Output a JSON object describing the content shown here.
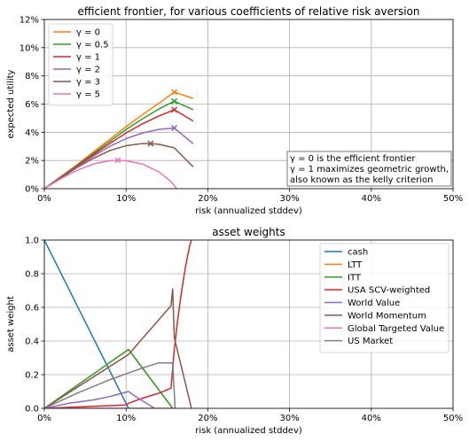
{
  "chart_data": [
    {
      "type": "line",
      "title": "efficient frontier, for various coefficients of relative risk aversion",
      "xlabel": "risk (annualized stddev)",
      "ylabel": "expected utility",
      "xlim": [
        0,
        50
      ],
      "ylim": [
        0,
        12
      ],
      "xticks": [
        "0%",
        "10%",
        "20%",
        "30%",
        "40%",
        "50%"
      ],
      "xtick_values": [
        0,
        10,
        20,
        30,
        40,
        50
      ],
      "yticks": [
        "0%",
        "2%",
        "4%",
        "6%",
        "8%",
        "10%",
        "12%"
      ],
      "ytick_values": [
        0,
        2,
        4,
        6,
        8,
        10,
        12
      ],
      "grid": true,
      "legend": "top-left",
      "series": [
        {
          "name": "γ = 0",
          "color": "#ff7f0e",
          "x": [
            0,
            2,
            4,
            6,
            8,
            10,
            12,
            14,
            15.9,
            18.2
          ],
          "y": [
            0,
            0.85,
            1.7,
            2.6,
            3.5,
            4.4,
            5.25,
            6.05,
            6.85,
            6.4
          ],
          "marker": [
            15.9,
            6.85
          ]
        },
        {
          "name": "γ = 0.5",
          "color": "#2ca02c",
          "x": [
            0,
            2,
            4,
            6,
            8,
            10,
            12,
            14,
            15.9,
            18.2
          ],
          "y": [
            0,
            0.82,
            1.65,
            2.5,
            3.35,
            4.2,
            4.95,
            5.65,
            6.2,
            5.6
          ],
          "marker": [
            15.9,
            6.2
          ]
        },
        {
          "name": "γ = 1",
          "color": "#d62728",
          "x": [
            0,
            2,
            4,
            6,
            8,
            10,
            12,
            14,
            15.9,
            18.2
          ],
          "y": [
            0,
            0.8,
            1.6,
            2.4,
            3.2,
            3.95,
            4.6,
            5.15,
            5.6,
            4.8
          ],
          "marker": [
            15.9,
            5.6
          ]
        },
        {
          "name": "γ = 2",
          "color": "#9467bd",
          "x": [
            0,
            2,
            4,
            6,
            8,
            10,
            12,
            14,
            15.9,
            18.2
          ],
          "y": [
            0,
            0.78,
            1.55,
            2.3,
            3.0,
            3.55,
            3.95,
            4.2,
            4.3,
            3.2
          ],
          "marker": [
            15.9,
            4.3
          ]
        },
        {
          "name": "γ = 3",
          "color": "#8c564b",
          "x": [
            0,
            2,
            4,
            6,
            8,
            10,
            12,
            13,
            14,
            15.9,
            18.2
          ],
          "y": [
            0,
            0.75,
            1.5,
            2.15,
            2.7,
            3.05,
            3.2,
            3.2,
            3.15,
            2.9,
            1.55
          ],
          "marker": [
            13,
            3.2
          ]
        },
        {
          "name": "γ = 5",
          "color": "#e377c2",
          "x": [
            0,
            2,
            4,
            6,
            8,
            9,
            10,
            12,
            14,
            15.5,
            16.2
          ],
          "y": [
            0,
            0.7,
            1.3,
            1.75,
            1.98,
            2.02,
            1.98,
            1.75,
            1.2,
            0.5,
            0
          ],
          "marker": [
            9,
            2.02
          ]
        }
      ],
      "annotation": [
        "γ = 0 is the efficient frontier",
        "γ = 1 maximizes geometric growth,",
        "also known as the kelly criterion"
      ]
    },
    {
      "type": "line",
      "title": "asset weights",
      "xlabel": "risk (annualized stddev)",
      "ylabel": "asset weight",
      "xlim": [
        0,
        50
      ],
      "ylim": [
        0,
        1.0
      ],
      "xticks": [
        "0%",
        "10%",
        "20%",
        "30%",
        "40%",
        "50%"
      ],
      "xtick_values": [
        0,
        10,
        20,
        30,
        40,
        50
      ],
      "yticks": [
        "0.0",
        "0.2",
        "0.4",
        "0.6",
        "0.8",
        "1.0"
      ],
      "ytick_values": [
        0,
        0.2,
        0.4,
        0.6,
        0.8,
        1.0
      ],
      "grid": true,
      "legend": "top-right",
      "series": [
        {
          "name": "cash",
          "color": "#1f77b4",
          "x": [
            0,
            10.3
          ],
          "y": [
            1.0,
            0.0
          ]
        },
        {
          "name": "LTT",
          "color": "#ff7f0e",
          "x": [
            0,
            10.3,
            15.7
          ],
          "y": [
            0,
            0.35,
            0
          ]
        },
        {
          "name": "ITT",
          "color": "#2ca02c",
          "x": [
            0,
            10.3,
            15.7
          ],
          "y": [
            0,
            0.35,
            0
          ]
        },
        {
          "name": "USA SCV-weighted",
          "color": "#d62728",
          "x": [
            0,
            10,
            10.3,
            12,
            14,
            15.5,
            15.9,
            16.3,
            16.8,
            17.3,
            17.8,
            18.0
          ],
          "y": [
            0,
            0.02,
            0.03,
            0.06,
            0.09,
            0.12,
            0.35,
            0.52,
            0.7,
            0.85,
            0.97,
            1.0
          ]
        },
        {
          "name": "World Value",
          "color": "#9467bd",
          "x": [
            0,
            3,
            6,
            8,
            10.3,
            11.5,
            13.5
          ],
          "y": [
            0,
            0.03,
            0.05,
            0.07,
            0.1,
            0.06,
            0
          ]
        },
        {
          "name": "World Momentum",
          "color": "#8c564b",
          "x": [
            0,
            10.3,
            15.5,
            15.7,
            15.9,
            18.0
          ],
          "y": [
            0,
            0.32,
            0.61,
            0.71,
            0.42,
            0
          ]
        },
        {
          "name": "Global Targeted Value",
          "color": "#e377c2",
          "x": [
            0,
            15.7
          ],
          "y": [
            0,
            0
          ]
        },
        {
          "name": "US Market",
          "color": "#7f7f7f",
          "x": [
            0,
            4,
            8,
            10.3,
            12,
            14,
            15.7,
            16.0
          ],
          "y": [
            0,
            0.09,
            0.17,
            0.21,
            0.24,
            0.27,
            0.27,
            0
          ]
        }
      ]
    }
  ]
}
